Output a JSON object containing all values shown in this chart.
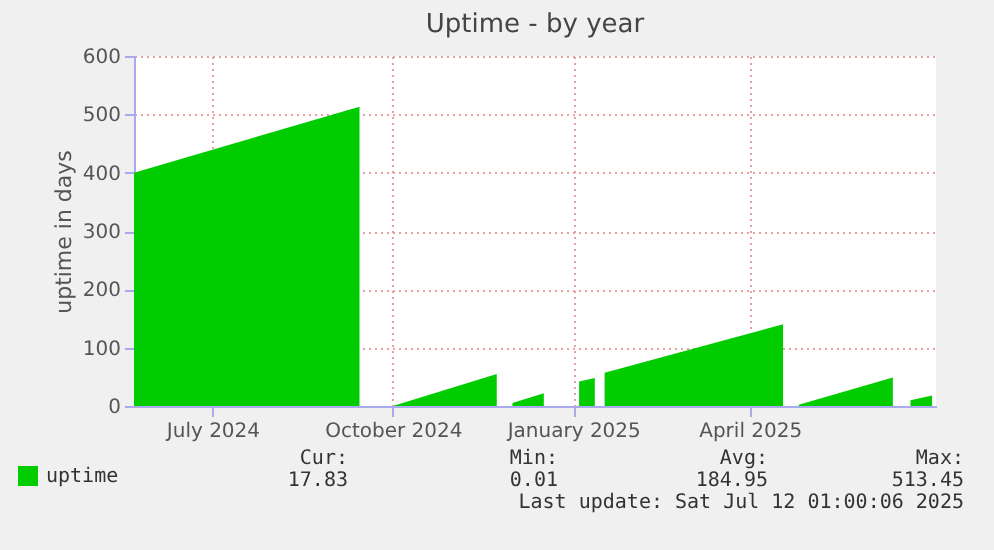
{
  "chart_data": {
    "type": "area",
    "title": "Uptime - by year",
    "ylabel": "uptime in days",
    "x": [
      "2024-05-22",
      "2024-09-14",
      "2024-09-20",
      "2024-10-01",
      "2024-11-23",
      "2024-11-27",
      "2024-12-01",
      "2024-12-17",
      "2024-12-25",
      "2025-01-04",
      "2025-01-12",
      "2025-01-14",
      "2025-01-17",
      "2025-04-18",
      "2025-04-22",
      "2025-04-26",
      "2025-06-13",
      "2025-06-19",
      "2025-06-22",
      "2025-07-03"
    ],
    "series": [
      {
        "name": "uptime",
        "color": "#00cc00",
        "values": [
          400,
          513,
          null,
          0,
          55,
          null,
          5,
          22,
          null,
          42,
          48,
          null,
          57,
          140,
          null,
          2,
          49,
          null,
          10,
          18
        ]
      }
    ],
    "xlim": [
      "2024-05-22",
      "2025-07-05"
    ],
    "xticks": [
      {
        "value": "2024-07-01",
        "label": "July 2024"
      },
      {
        "value": "2024-10-01",
        "label": "October 2024"
      },
      {
        "value": "2025-01-01",
        "label": "January 2025"
      },
      {
        "value": "2025-04-01",
        "label": "April 2025"
      }
    ],
    "ylim": [
      0,
      600
    ],
    "yticks": [
      0,
      100,
      200,
      300,
      400,
      500,
      600
    ],
    "grid": true,
    "legend": "bottom",
    "annotations": [
      "Cur:",
      "17.83",
      "Min:",
      "0.01",
      "Avg:",
      "184.95",
      "Max:",
      "513.45",
      "Last update: Sat Jul 12 01:00:06 2025"
    ]
  }
}
